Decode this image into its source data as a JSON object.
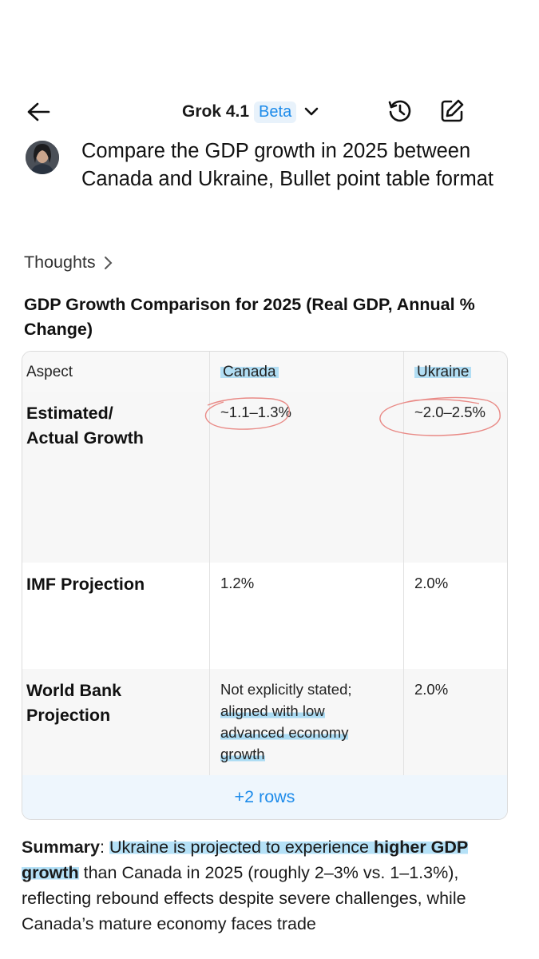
{
  "header": {
    "model_name": "Grok 4.1",
    "beta_badge": "Beta",
    "icons": {
      "back": "arrow-left-icon",
      "dropdown": "chevron-down-icon",
      "history": "history-icon",
      "new_chat": "edit-icon"
    }
  },
  "prompt": {
    "text": "Compare the GDP growth in 2025 between Canada and Ukraine, Bullet point table format"
  },
  "thoughts": {
    "label": "Thoughts"
  },
  "table": {
    "title": "GDP Growth Comparison for 2025 (Real GDP, Annual % Change)",
    "columns": [
      "Aspect",
      "Canada",
      "Ukraine"
    ],
    "rows": [
      {
        "aspect": "Estimated/ Actual Growth",
        "canada": "~1.1–1.3%",
        "ukraine": "~2.0–2.5%"
      },
      {
        "aspect": "IMF Projection",
        "canada": "1.2%",
        "ukraine": "2.0%"
      },
      {
        "aspect": "World Bank Projection",
        "canada_parts": [
          "Not explicitly stated;",
          "aligned with low advanced economy growth"
        ],
        "ukraine": "2.0%"
      }
    ],
    "more_rows": "+2 rows"
  },
  "summary": {
    "label": "Summary",
    "colon": ": ",
    "part1": "Ukraine is projected to experience ",
    "bold": "higher GDP growth",
    "part2": " than Canada in 2025 (roughly 2–3% vs. 1–1.3%), reflecting rebound effects despite severe challenges, while Canada’s mature economy faces trade"
  },
  "colors": {
    "accent": "#1d8bea",
    "highlight": "#78c8f0",
    "annotation_circle": "#e98a86"
  }
}
